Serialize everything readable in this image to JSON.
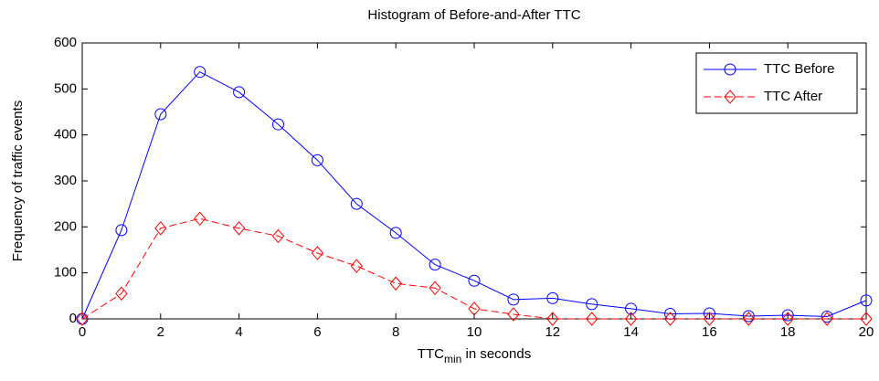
{
  "chart_data": {
    "type": "line",
    "title": "Histogram of Before-and-After TTC",
    "xlabel_parts": [
      "TTC",
      "min",
      " in seconds"
    ],
    "ylabel": "Frequency of traffic events",
    "x": [
      0,
      1,
      2,
      3,
      4,
      5,
      6,
      7,
      8,
      9,
      10,
      11,
      12,
      13,
      14,
      15,
      16,
      17,
      18,
      19,
      20
    ],
    "series": [
      {
        "name": "TTC Before",
        "color": "#0000ff",
        "marker": "circle",
        "dashed": false,
        "values": [
          0,
          193,
          445,
          537,
          493,
          423,
          345,
          250,
          187,
          118,
          83,
          42,
          45,
          32,
          22,
          11,
          12,
          6,
          8,
          5,
          40
        ]
      },
      {
        "name": "TTC After",
        "color": "#ff0000",
        "marker": "diamond",
        "dashed": true,
        "values": [
          0,
          55,
          197,
          218,
          197,
          180,
          143,
          115,
          77,
          67,
          22,
          10,
          0,
          0,
          0,
          0,
          0,
          0,
          0,
          0,
          0
        ]
      }
    ],
    "xlim": [
      0,
      20
    ],
    "xticks": [
      0,
      2,
      4,
      6,
      8,
      10,
      12,
      14,
      16,
      18,
      20
    ],
    "ylim": [
      0,
      600
    ],
    "yticks": [
      0,
      100,
      200,
      300,
      400,
      500,
      600
    ],
    "grid": false,
    "legend": "northeast"
  }
}
